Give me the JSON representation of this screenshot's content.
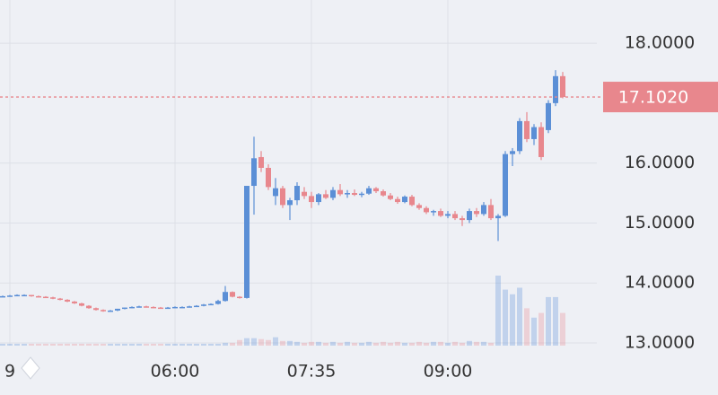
{
  "chart_data": {
    "type": "candlestick",
    "categories": [
      null,
      "9",
      null,
      null,
      null,
      null,
      null,
      null,
      null,
      null,
      null,
      null,
      null,
      null,
      null,
      null,
      null,
      null,
      null,
      null,
      null,
      null,
      null,
      null,
      "06:00",
      null,
      null,
      null,
      null,
      null,
      null,
      null,
      null,
      null,
      null,
      null,
      null,
      null,
      null,
      null,
      null,
      null,
      null,
      "07:35",
      null,
      null,
      null,
      null,
      null,
      null,
      null,
      null,
      null,
      null,
      null,
      null,
      null,
      null,
      null,
      null,
      null,
      null,
      "09:00",
      null,
      null,
      null,
      null,
      null,
      null,
      null,
      null,
      null,
      null,
      null,
      null,
      null,
      null,
      null,
      null
    ],
    "open": [
      13.78,
      13.78,
      13.79,
      13.8,
      13.8,
      13.78,
      13.77,
      13.76,
      13.74,
      13.72,
      13.69,
      13.66,
      13.62,
      13.58,
      13.55,
      13.53,
      13.54,
      13.57,
      13.59,
      13.6,
      13.61,
      13.6,
      13.59,
      13.58,
      13.59,
      13.6,
      13.6,
      13.61,
      13.62,
      13.64,
      13.65,
      13.7,
      13.85,
      13.77,
      13.75,
      15.62,
      16.1,
      15.92,
      15.45,
      15.58,
      15.3,
      15.38,
      15.52,
      15.45,
      15.35,
      15.48,
      15.42,
      15.55,
      15.48,
      15.5,
      15.47,
      15.49,
      15.58,
      15.53,
      15.46,
      15.4,
      15.35,
      15.44,
      15.3,
      15.25,
      15.18,
      15.2,
      15.12,
      15.15,
      15.08,
      15.05,
      15.2,
      15.15,
      15.3,
      15.08,
      15.12,
      16.15,
      16.2,
      16.7,
      16.4,
      16.6,
      16.55,
      17.0,
      17.45
    ],
    "high": [
      13.79,
      13.8,
      13.81,
      13.81,
      13.8,
      13.79,
      13.78,
      13.77,
      13.75,
      13.73,
      13.7,
      13.67,
      13.63,
      13.59,
      13.56,
      13.55,
      13.57,
      13.59,
      13.61,
      13.62,
      13.62,
      13.61,
      13.6,
      13.6,
      13.61,
      13.61,
      13.62,
      13.63,
      13.65,
      13.66,
      13.72,
      13.95,
      13.86,
      13.78,
      15.62,
      16.44,
      16.2,
      15.98,
      15.75,
      15.62,
      15.42,
      15.68,
      15.6,
      15.52,
      15.5,
      15.55,
      15.6,
      15.65,
      15.55,
      15.56,
      15.52,
      15.62,
      15.6,
      15.56,
      15.5,
      15.44,
      15.46,
      15.47,
      15.33,
      15.28,
      15.22,
      15.24,
      15.2,
      15.2,
      15.12,
      15.24,
      15.25,
      15.35,
      15.4,
      15.15,
      16.2,
      16.25,
      16.75,
      16.85,
      16.65,
      16.68,
      17.05,
      17.55,
      17.52
    ],
    "low": [
      13.77,
      13.77,
      13.78,
      13.79,
      13.77,
      13.76,
      13.75,
      13.73,
      13.71,
      13.68,
      13.65,
      13.61,
      13.57,
      13.54,
      13.52,
      13.52,
      13.53,
      13.56,
      13.58,
      13.59,
      13.59,
      13.58,
      13.57,
      13.57,
      13.58,
      13.59,
      13.59,
      13.6,
      13.61,
      13.63,
      13.64,
      13.69,
      13.76,
      13.74,
      13.74,
      15.14,
      15.85,
      15.55,
      15.3,
      15.25,
      15.05,
      15.3,
      15.4,
      15.25,
      15.3,
      15.4,
      15.38,
      15.45,
      15.42,
      15.45,
      15.43,
      15.47,
      15.5,
      15.44,
      15.38,
      15.32,
      15.33,
      15.28,
      15.22,
      15.15,
      15.12,
      15.1,
      15.08,
      15.05,
      14.95,
      15.0,
      15.1,
      15.12,
      15.05,
      14.7,
      15.1,
      15.95,
      16.15,
      16.35,
      16.3,
      16.05,
      16.5,
      16.95,
      17.08
    ],
    "close": [
      13.78,
      13.79,
      13.8,
      13.8,
      13.78,
      13.77,
      13.76,
      13.74,
      13.72,
      13.69,
      13.66,
      13.62,
      13.58,
      13.55,
      13.53,
      13.54,
      13.57,
      13.59,
      13.6,
      13.61,
      13.6,
      13.59,
      13.58,
      13.59,
      13.6,
      13.6,
      13.61,
      13.62,
      13.64,
      13.65,
      13.7,
      13.85,
      13.77,
      13.75,
      15.62,
      16.08,
      15.92,
      15.6,
      15.58,
      15.3,
      15.38,
      15.62,
      15.45,
      15.35,
      15.48,
      15.42,
      15.55,
      15.48,
      15.5,
      15.47,
      15.49,
      15.58,
      15.53,
      15.46,
      15.4,
      15.35,
      15.44,
      15.3,
      15.25,
      15.18,
      15.2,
      15.12,
      15.15,
      15.08,
      15.05,
      15.2,
      15.15,
      15.3,
      15.08,
      15.12,
      16.15,
      16.2,
      16.7,
      16.4,
      16.6,
      16.1,
      17.0,
      17.45,
      17.102
    ],
    "volume": [
      2,
      2,
      2,
      2,
      2,
      2,
      2,
      2,
      2,
      2,
      2,
      2,
      2,
      2,
      2,
      2,
      2,
      2,
      2,
      2,
      2,
      2,
      2,
      2,
      2,
      2,
      2,
      2,
      2,
      2,
      2,
      3,
      3,
      6,
      8,
      8,
      7,
      6,
      9,
      5,
      5,
      4,
      3,
      4,
      4,
      3,
      4,
      3,
      4,
      3,
      3,
      4,
      3,
      4,
      3,
      4,
      3,
      3,
      4,
      3,
      4,
      4,
      3,
      4,
      3,
      5,
      4,
      4,
      3,
      75,
      60,
      55,
      62,
      40,
      30,
      35,
      52,
      52,
      35
    ],
    "up_color": "#5b8fd6",
    "down_color": "#e8878d",
    "ylim": [
      12.955,
      18.72
    ],
    "yticks": [
      {
        "value": 13,
        "label": "13.0000"
      },
      {
        "value": 14,
        "label": "14.0000"
      },
      {
        "value": 15,
        "label": "15.0000"
      },
      {
        "value": 16,
        "label": "16.0000"
      },
      {
        "value": 18,
        "label": "18.0000"
      }
    ],
    "last_price": {
      "value": 17.102,
      "label": "17.1020"
    },
    "grid": true
  }
}
